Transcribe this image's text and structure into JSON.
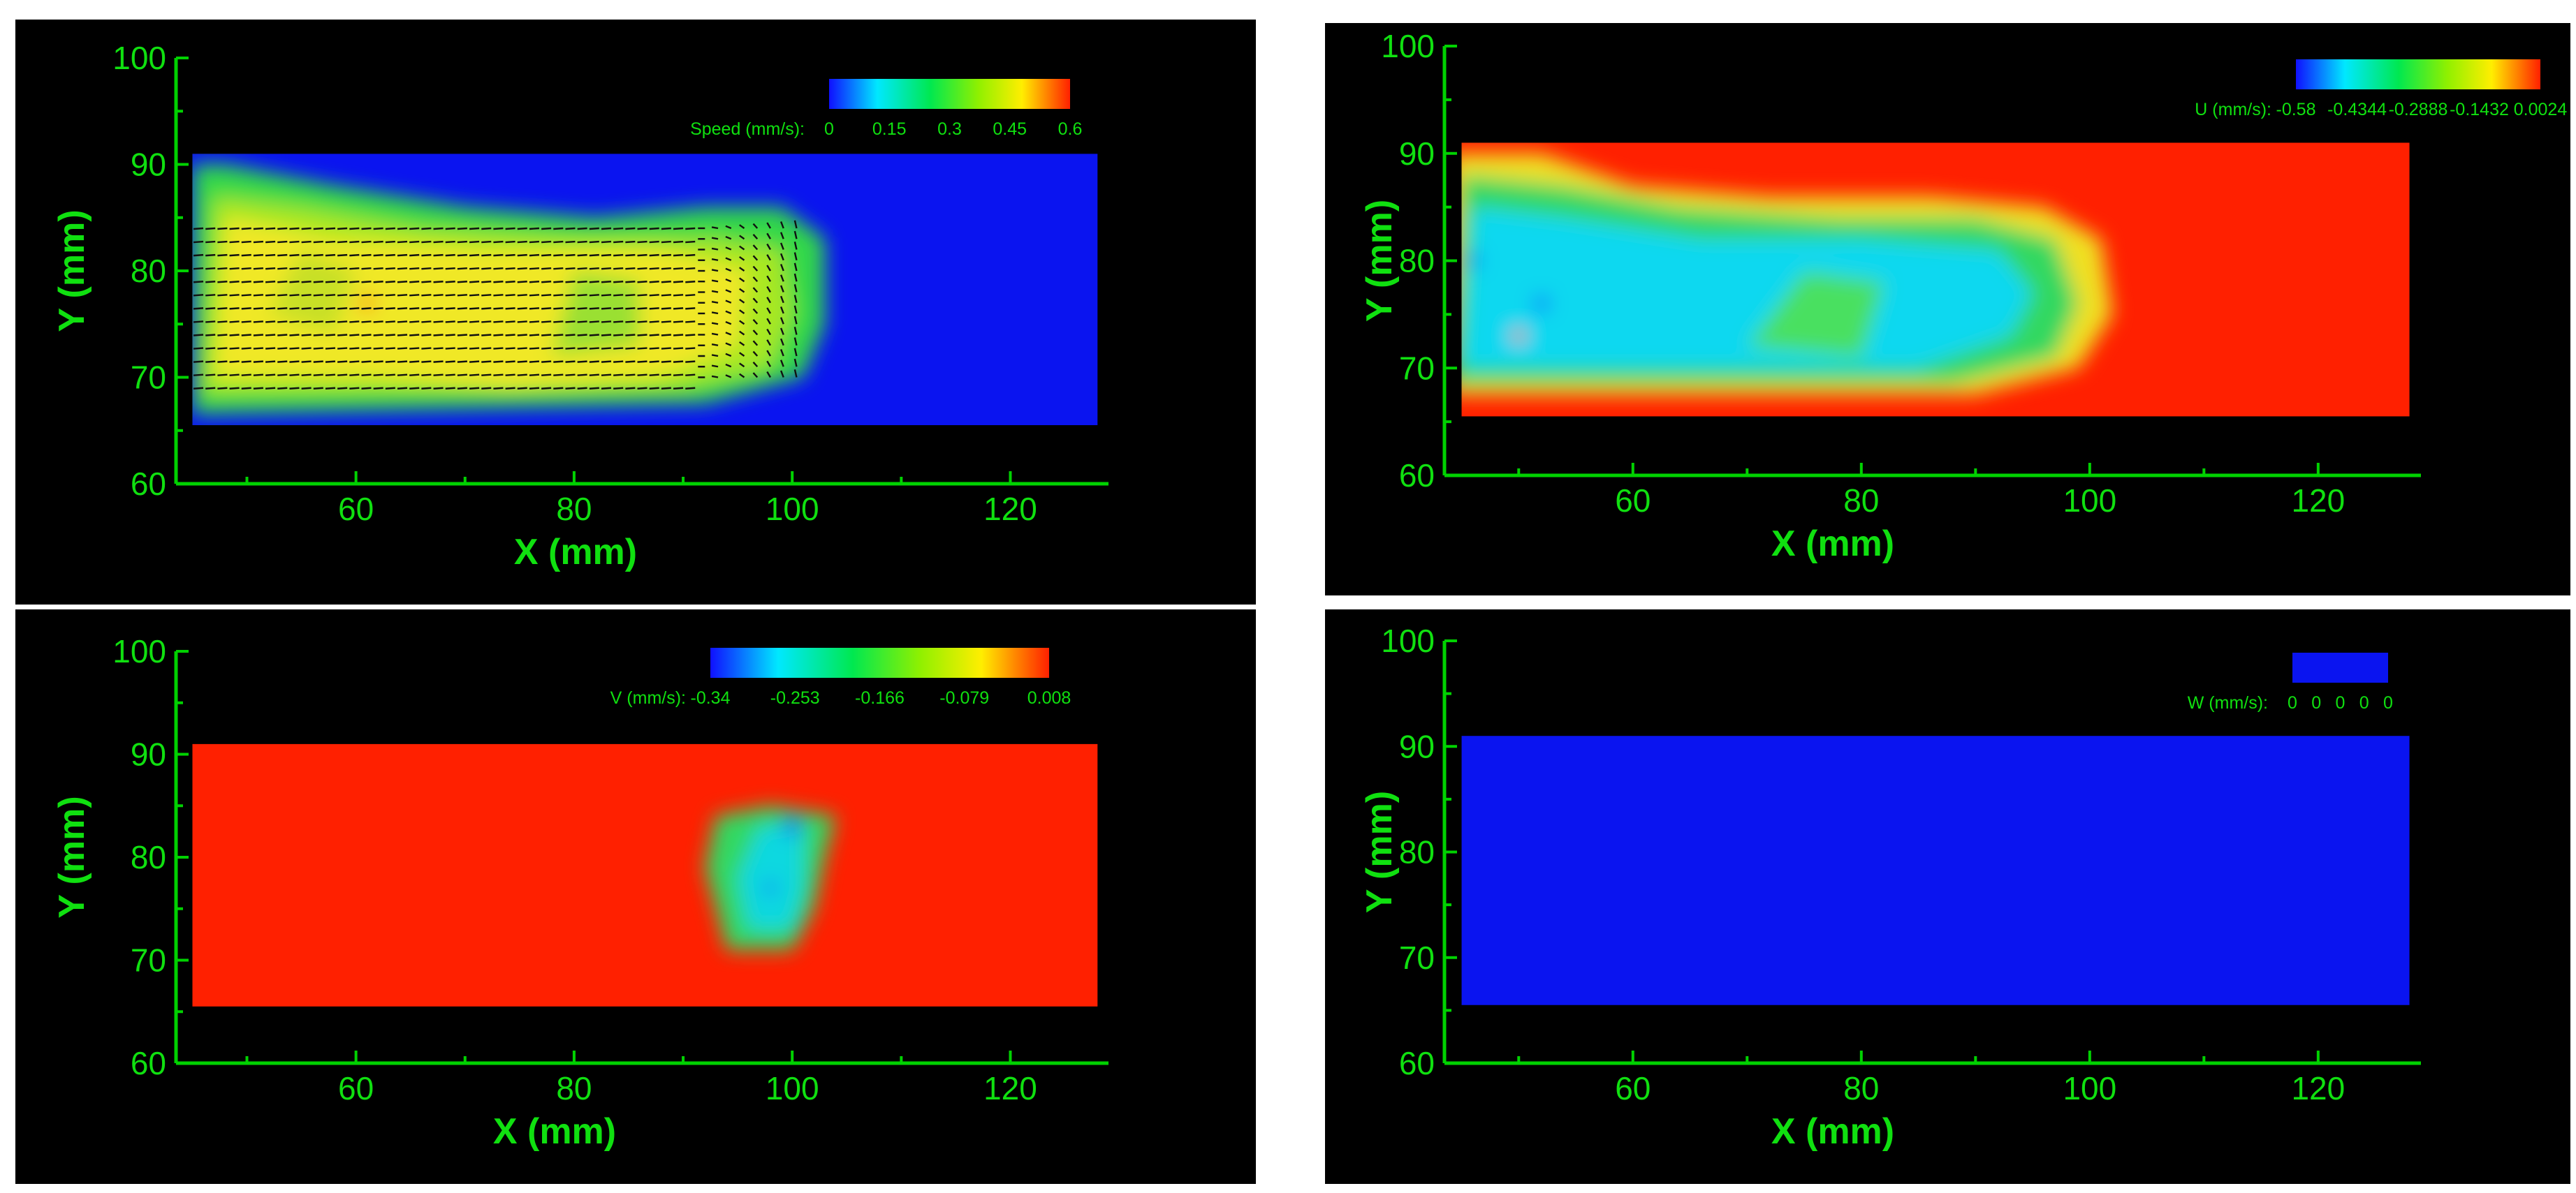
{
  "colors": {
    "background": "#000000",
    "axis": "#00d200",
    "low": "#0a14f0",
    "high": "#ff2000"
  },
  "chart_data": [
    {
      "type": "heatmap",
      "panel": "top-left",
      "xlabel": "X (mm)",
      "ylabel": "Y (mm)",
      "xlim": [
        43.5,
        129
      ],
      "ylim": [
        60,
        100
      ],
      "xticks": [
        "60",
        "80",
        "100",
        "120"
      ],
      "yticks": [
        "60",
        "70",
        "80",
        "90",
        "100"
      ],
      "field_extent": {
        "x": [
          45,
          128
        ],
        "y": [
          65.5,
          91
        ]
      },
      "legend": {
        "placement": "top-right",
        "label": "Speed (mm/s):",
        "ticks": [
          "0",
          "0.15",
          "0.3",
          "0.45",
          "0.6"
        ],
        "range": [
          0,
          0.6
        ]
      },
      "vectors": true
    },
    {
      "type": "heatmap",
      "panel": "top-right",
      "xlabel": "X (mm)",
      "ylabel": "Y (mm)",
      "xlim": [
        43.5,
        129
      ],
      "ylim": [
        60,
        100
      ],
      "xticks": [
        "60",
        "80",
        "100",
        "120"
      ],
      "yticks": [
        "60",
        "70",
        "80",
        "90",
        "100"
      ],
      "field_extent": {
        "x": [
          45,
          128
        ],
        "y": [
          65.5,
          91
        ]
      },
      "legend": {
        "placement": "top-right",
        "label": "U (mm/s):",
        "ticks": [
          "-0.58",
          "-0.4344",
          "-0.2888",
          "-0.1432",
          "0.0024"
        ],
        "range": [
          -0.58,
          0.0024
        ]
      }
    },
    {
      "type": "heatmap",
      "panel": "bottom-left",
      "xlabel": "X (mm)",
      "ylabel": "Y (mm)",
      "xlim": [
        43.5,
        129
      ],
      "ylim": [
        60,
        100
      ],
      "xticks": [
        "60",
        "80",
        "100",
        "120"
      ],
      "yticks": [
        "60",
        "70",
        "80",
        "90",
        "100"
      ],
      "field_extent": {
        "x": [
          45,
          128
        ],
        "y": [
          65.5,
          91
        ]
      },
      "legend": {
        "placement": "top-right",
        "label": "V (mm/s):",
        "ticks": [
          "-0.34",
          "-0.253",
          "-0.166",
          "-0.079",
          "0.008"
        ],
        "range": [
          -0.34,
          0.008
        ]
      }
    },
    {
      "type": "heatmap",
      "panel": "bottom-right",
      "xlabel": "X (mm)",
      "ylabel": "Y (mm)",
      "xlim": [
        43.5,
        129
      ],
      "ylim": [
        60,
        100
      ],
      "xticks": [
        "60",
        "80",
        "100",
        "120"
      ],
      "yticks": [
        "60",
        "70",
        "80",
        "90",
        "100"
      ],
      "field_extent": {
        "x": [
          45,
          128
        ],
        "y": [
          65.5,
          91
        ]
      },
      "legend": {
        "placement": "top-right",
        "label": "W (mm/s):",
        "ticks": [
          "0",
          "0",
          "0",
          "0",
          "0"
        ],
        "range": [
          0,
          0
        ]
      }
    }
  ]
}
